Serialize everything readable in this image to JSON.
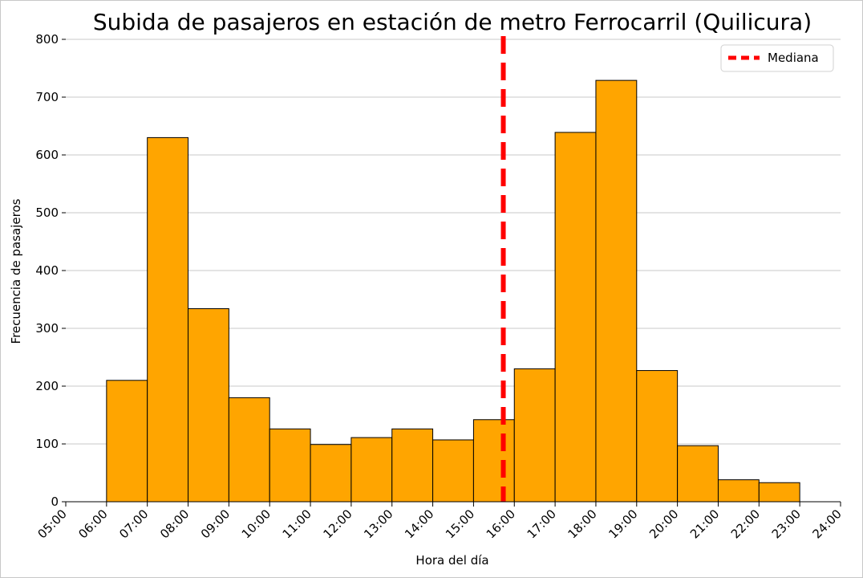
{
  "chart_data": {
    "type": "bar",
    "title": "Subida de pasajeros en estación de metro Ferrocarril (Quilicura)",
    "xlabel": "Hora del día",
    "ylabel": "Frecuencia de pasajeros",
    "x_ticks": [
      "05:00",
      "06:00",
      "07:00",
      "08:00",
      "09:00",
      "10:00",
      "11:00",
      "12:00",
      "13:00",
      "14:00",
      "15:00",
      "16:00",
      "17:00",
      "18:00",
      "19:00",
      "20:00",
      "21:00",
      "22:00",
      "23:00",
      "24:00"
    ],
    "y_ticks": [
      0,
      100,
      200,
      300,
      400,
      500,
      600,
      700,
      800
    ],
    "xlim": [
      5,
      24
    ],
    "ylim": [
      0,
      800
    ],
    "bins": [
      {
        "start": 6,
        "end": 7,
        "value": 210
      },
      {
        "start": 7,
        "end": 8,
        "value": 630
      },
      {
        "start": 8,
        "end": 9,
        "value": 334
      },
      {
        "start": 9,
        "end": 10,
        "value": 180
      },
      {
        "start": 10,
        "end": 11,
        "value": 126
      },
      {
        "start": 11,
        "end": 12,
        "value": 99
      },
      {
        "start": 12,
        "end": 13,
        "value": 111
      },
      {
        "start": 13,
        "end": 14,
        "value": 126
      },
      {
        "start": 14,
        "end": 15,
        "value": 107
      },
      {
        "start": 15,
        "end": 16,
        "value": 142
      },
      {
        "start": 16,
        "end": 17,
        "value": 230
      },
      {
        "start": 17,
        "end": 18,
        "value": 639
      },
      {
        "start": 18,
        "end": 19,
        "value": 729
      },
      {
        "start": 19,
        "end": 20,
        "value": 227
      },
      {
        "start": 20,
        "end": 21,
        "value": 97
      },
      {
        "start": 21,
        "end": 22,
        "value": 38
      },
      {
        "start": 22,
        "end": 23,
        "value": 33
      }
    ],
    "median_hour": 15.73,
    "legend": [
      {
        "label": "Mediana",
        "color": "#ff0000",
        "style": "dashed"
      }
    ],
    "legend_position": "top-right",
    "grid": "horizontal",
    "bar_color": "#ffa500",
    "bar_edge_color": "#000000"
  }
}
